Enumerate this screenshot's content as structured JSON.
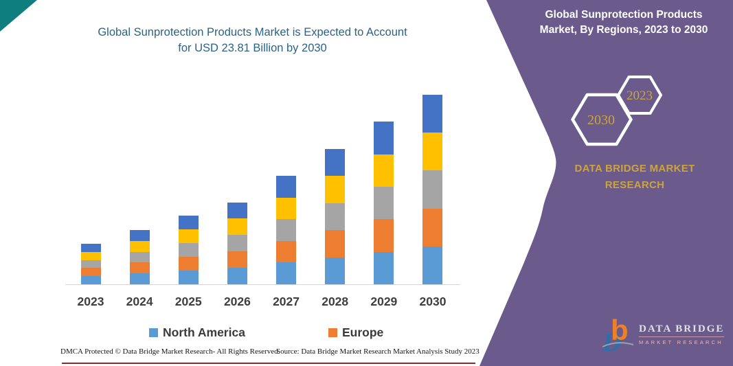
{
  "chart": {
    "title_line1": "Global Sunprotection Products Market is Expected to Account",
    "title_line2": "for USD 23.81 Billion by 2030"
  },
  "chart_data": {
    "type": "bar",
    "stacked": true,
    "title": "Global Sunprotection Products Market is Expected to Account for USD 23.81 Billion by 2030",
    "unit": "USD Billion",
    "categories": [
      "2023",
      "2024",
      "2025",
      "2026",
      "2027",
      "2028",
      "2029",
      "2030"
    ],
    "totals": [
      5.1,
      6.8,
      8.6,
      10.3,
      13.6,
      17.0,
      20.4,
      23.81
    ],
    "series": [
      {
        "name": "North America",
        "color": "#5B9BD5",
        "in_legend": true,
        "values": [
          1.02,
          1.36,
          1.72,
          2.06,
          2.72,
          3.4,
          4.08,
          4.76
        ]
      },
      {
        "name": "Europe",
        "color": "#ED7D31",
        "in_legend": true,
        "values": [
          1.02,
          1.36,
          1.72,
          2.06,
          2.72,
          3.4,
          4.08,
          4.76
        ]
      },
      {
        "name": "unlabeled-gray",
        "color": "#A5A5A5",
        "in_legend": false,
        "values": [
          1.02,
          1.36,
          1.72,
          2.06,
          2.72,
          3.4,
          4.08,
          4.76
        ]
      },
      {
        "name": "unlabeled-yellow",
        "color": "#FFC000",
        "in_legend": false,
        "values": [
          1.02,
          1.36,
          1.72,
          2.06,
          2.72,
          3.4,
          4.08,
          4.76
        ]
      },
      {
        "name": "unlabeled-darkblue",
        "color": "#4472C4",
        "in_legend": false,
        "values": [
          1.02,
          1.36,
          1.72,
          2.06,
          2.72,
          3.4,
          4.08,
          4.76
        ]
      }
    ],
    "legend": [
      {
        "label": "North America",
        "color": "#5B9BD5"
      },
      {
        "label": "Europe",
        "color": "#ED7D31"
      }
    ],
    "axes": {
      "y_axis_visible": false,
      "gridlines": false,
      "baseline_color": "#D6D6D6"
    }
  },
  "panel": {
    "title_line1": "Global Sunprotection Products",
    "title_line2": "Market, By Regions, 2023 to 2030",
    "hex_back_year": "2030",
    "hex_front_year": "2023",
    "brand_line1": "DATA BRIDGE MARKET",
    "brand_line2": "RESEARCH",
    "colors": {
      "purple": "#6A5B8C",
      "gold": "#CDA33C"
    }
  },
  "logo": {
    "mark_letter_b": "b",
    "mark_letter_d": "D",
    "name": "DATA BRIDGE",
    "tagline": "MARKET RESEARCH"
  },
  "footer": {
    "dmca": "DMCA Protected © Data Bridge Market Research-  All Rights Reserved.",
    "source": "Source: Data Bridge Market Research  Market Analysis Study 2023"
  },
  "decorations": {
    "corner_triangle_color": "#0E7F7E",
    "bottom_rule_color": "#7B3030"
  }
}
